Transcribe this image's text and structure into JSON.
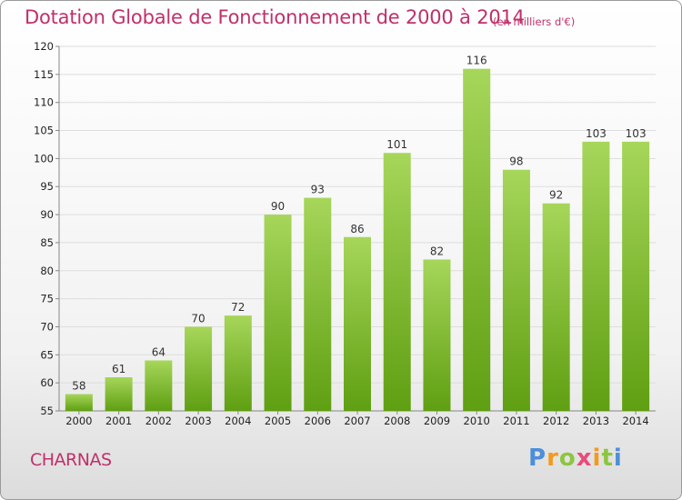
{
  "header": {
    "title": "Dotation Globale de Fonctionnement de 2000 à 2014",
    "unit": "(en milliers d'€)"
  },
  "footer": {
    "commune": "CHARNAS",
    "logo_text": "Proxiti"
  },
  "colors": {
    "title": "#c0306a",
    "bar_light": "#a6d65a",
    "bar_dark": "#5f9f12",
    "gridline": "#dddddd"
  },
  "chart_data": {
    "type": "bar",
    "title": "Dotation Globale de Fonctionnement de 2000 à 2014",
    "subtitle": "(en milliers d'€)",
    "xlabel": "",
    "ylabel": "",
    "categories": [
      "2000",
      "2001",
      "2002",
      "2003",
      "2004",
      "2005",
      "2006",
      "2007",
      "2008",
      "2009",
      "2010",
      "2011",
      "2012",
      "2013",
      "2014"
    ],
    "values": [
      58,
      61,
      64,
      70,
      72,
      90,
      93,
      86,
      101,
      82,
      116,
      98,
      92,
      103,
      103
    ],
    "ylim": [
      55,
      120
    ],
    "yticks": [
      55,
      60,
      65,
      70,
      75,
      80,
      85,
      90,
      95,
      100,
      105,
      110,
      115,
      120
    ],
    "grid": true,
    "data_labels": true
  }
}
